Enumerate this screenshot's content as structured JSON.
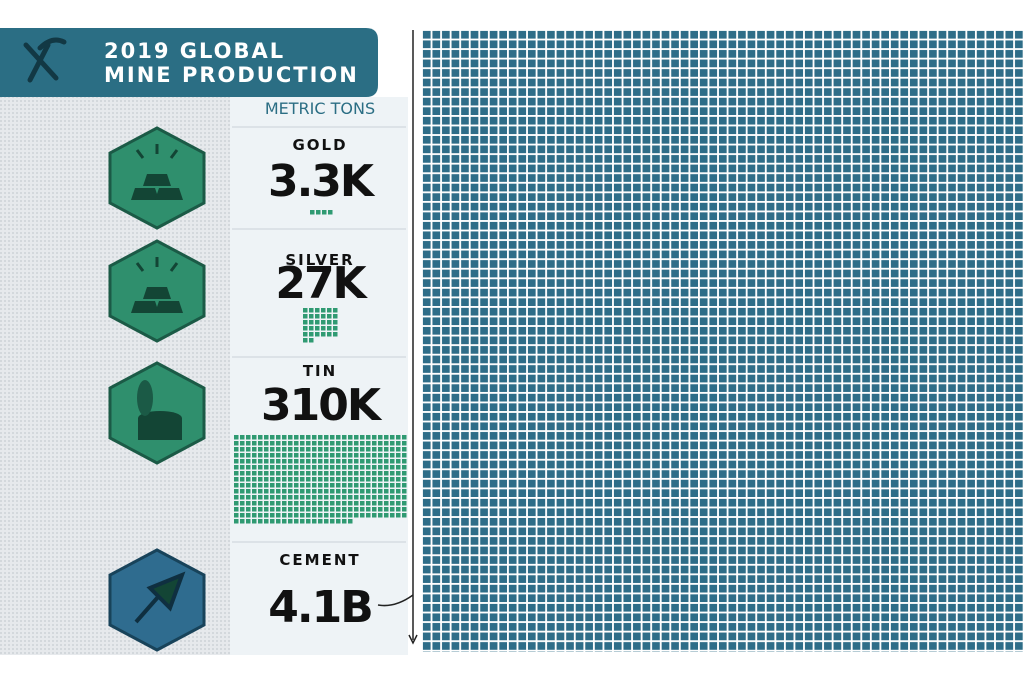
{
  "header": {
    "title": [
      "2019 GLOBAL",
      "MINE PRODUCTION"
    ]
  },
  "unit": "METRIC TONS",
  "items": [
    {
      "name": "GOLD",
      "value": "3.3K"
    },
    {
      "name": "SILVER",
      "value": "27K"
    },
    {
      "name": "TIN",
      "value": "310K"
    },
    {
      "name": "CEMENT",
      "value": "4.1B"
    }
  ]
}
